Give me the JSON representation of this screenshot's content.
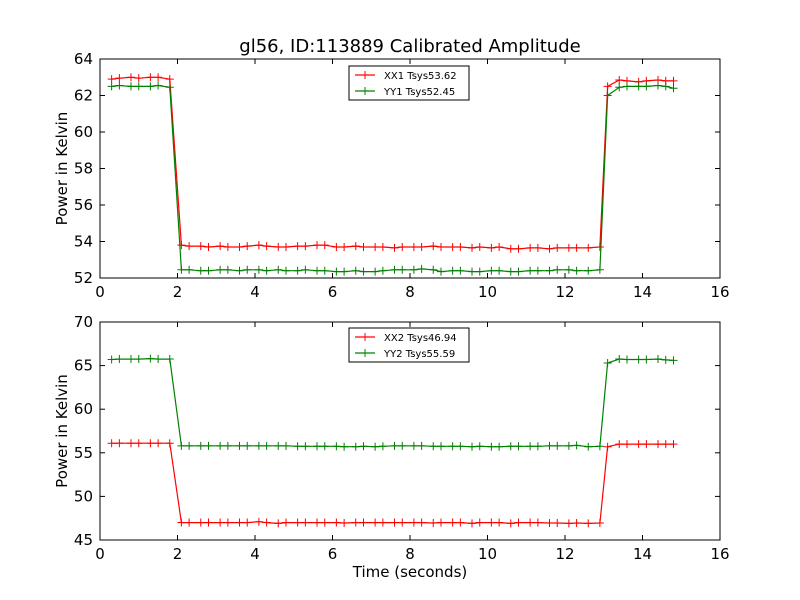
{
  "chart_data": [
    {
      "type": "line",
      "title": "gl56, ID:113889 Calibrated Amplitude",
      "xlabel": "",
      "ylabel": "Power in Kelvin",
      "xlim": [
        0,
        16
      ],
      "ylim": [
        52,
        64
      ],
      "xticks": [
        "0",
        "2",
        "4",
        "6",
        "8",
        "10",
        "12",
        "14",
        "16"
      ],
      "yticks": [
        "52",
        "54",
        "56",
        "58",
        "60",
        "62",
        "64"
      ],
      "legend_position": "top-center",
      "x": [
        0.3,
        0.5,
        0.8,
        1.0,
        1.3,
        1.5,
        1.8,
        2.1,
        2.3,
        2.6,
        2.8,
        3.1,
        3.3,
        3.6,
        3.8,
        4.1,
        4.3,
        4.6,
        4.8,
        5.1,
        5.3,
        5.6,
        5.8,
        6.1,
        6.3,
        6.6,
        6.8,
        7.1,
        7.3,
        7.6,
        7.8,
        8.1,
        8.3,
        8.6,
        8.8,
        9.1,
        9.3,
        9.6,
        9.8,
        10.1,
        10.3,
        10.6,
        10.8,
        11.1,
        11.3,
        11.6,
        11.8,
        12.1,
        12.3,
        12.6,
        12.9,
        13.1,
        13.4,
        13.6,
        13.9,
        14.1,
        14.4,
        14.6,
        14.8
      ],
      "series": [
        {
          "name": "XX1 Tsys53.62",
          "color": "#ff0000",
          "values": [
            62.9,
            62.95,
            63.0,
            62.95,
            63.0,
            63.0,
            62.9,
            53.8,
            53.75,
            53.75,
            53.7,
            53.75,
            53.7,
            53.7,
            53.75,
            53.8,
            53.75,
            53.7,
            53.7,
            53.75,
            53.75,
            53.8,
            53.8,
            53.7,
            53.7,
            53.75,
            53.7,
            53.7,
            53.7,
            53.65,
            53.7,
            53.7,
            53.7,
            53.75,
            53.7,
            53.7,
            53.7,
            53.65,
            53.7,
            53.65,
            53.7,
            53.6,
            53.6,
            53.65,
            53.65,
            53.6,
            53.65,
            53.65,
            53.65,
            53.65,
            53.7,
            62.5,
            62.85,
            62.8,
            62.75,
            62.8,
            62.85,
            62.8,
            62.8
          ]
        },
        {
          "name": "YY1 Tsys52.45",
          "color": "#008000",
          "values": [
            62.5,
            62.55,
            62.5,
            62.5,
            62.5,
            62.55,
            62.45,
            52.45,
            52.45,
            52.4,
            52.4,
            52.45,
            52.45,
            52.4,
            52.45,
            52.45,
            52.4,
            52.45,
            52.4,
            52.4,
            52.45,
            52.4,
            52.4,
            52.35,
            52.35,
            52.4,
            52.35,
            52.35,
            52.4,
            52.45,
            52.45,
            52.45,
            52.5,
            52.45,
            52.35,
            52.4,
            52.4,
            52.35,
            52.35,
            52.4,
            52.4,
            52.35,
            52.35,
            52.4,
            52.4,
            52.4,
            52.45,
            52.45,
            52.4,
            52.4,
            52.45,
            62.0,
            62.45,
            62.5,
            62.5,
            62.5,
            62.55,
            62.5,
            62.4
          ]
        }
      ]
    },
    {
      "type": "line",
      "title": "",
      "xlabel": "Time (seconds)",
      "ylabel": "Power in Kelvin",
      "xlim": [
        0,
        16
      ],
      "ylim": [
        45,
        70
      ],
      "xticks": [
        "0",
        "2",
        "4",
        "6",
        "8",
        "10",
        "12",
        "14",
        "16"
      ],
      "yticks": [
        "45",
        "50",
        "55",
        "60",
        "65",
        "70"
      ],
      "legend_position": "top-center",
      "x": [
        0.3,
        0.5,
        0.8,
        1.0,
        1.3,
        1.5,
        1.8,
        2.1,
        2.3,
        2.6,
        2.8,
        3.1,
        3.3,
        3.6,
        3.8,
        4.1,
        4.3,
        4.6,
        4.8,
        5.1,
        5.3,
        5.6,
        5.8,
        6.1,
        6.3,
        6.6,
        6.8,
        7.1,
        7.3,
        7.6,
        7.8,
        8.1,
        8.3,
        8.6,
        8.8,
        9.1,
        9.3,
        9.6,
        9.8,
        10.1,
        10.3,
        10.6,
        10.8,
        11.1,
        11.3,
        11.6,
        11.8,
        12.1,
        12.3,
        12.6,
        12.9,
        13.1,
        13.4,
        13.6,
        13.9,
        14.1,
        14.4,
        14.6,
        14.8
      ],
      "series": [
        {
          "name": "XX2 Tsys46.94",
          "color": "#ff0000",
          "values": [
            56.1,
            56.1,
            56.1,
            56.1,
            56.1,
            56.1,
            56.1,
            47.0,
            47.0,
            47.0,
            47.0,
            47.0,
            47.0,
            47.0,
            47.0,
            47.1,
            47.0,
            46.9,
            47.0,
            47.0,
            47.0,
            47.0,
            47.0,
            47.0,
            46.95,
            47.0,
            47.0,
            47.0,
            47.0,
            47.0,
            47.0,
            47.0,
            47.0,
            46.95,
            47.0,
            47.0,
            47.0,
            46.9,
            47.0,
            47.0,
            47.0,
            46.9,
            47.0,
            47.0,
            47.0,
            46.95,
            46.95,
            46.9,
            46.95,
            46.9,
            46.95,
            55.7,
            56.0,
            56.0,
            56.0,
            56.0,
            56.0,
            56.0,
            56.0
          ]
        },
        {
          "name": "YY2 Tsys55.59",
          "color": "#008000",
          "values": [
            65.7,
            65.75,
            65.75,
            65.75,
            65.8,
            65.75,
            65.75,
            55.8,
            55.8,
            55.8,
            55.8,
            55.8,
            55.8,
            55.8,
            55.8,
            55.8,
            55.8,
            55.8,
            55.8,
            55.75,
            55.75,
            55.75,
            55.75,
            55.75,
            55.7,
            55.7,
            55.75,
            55.7,
            55.75,
            55.8,
            55.8,
            55.8,
            55.8,
            55.75,
            55.75,
            55.75,
            55.75,
            55.7,
            55.75,
            55.7,
            55.7,
            55.75,
            55.75,
            55.75,
            55.75,
            55.8,
            55.8,
            55.8,
            55.85,
            55.7,
            55.75,
            65.3,
            65.75,
            65.7,
            65.7,
            65.7,
            65.75,
            65.65,
            65.6
          ]
        }
      ]
    }
  ]
}
